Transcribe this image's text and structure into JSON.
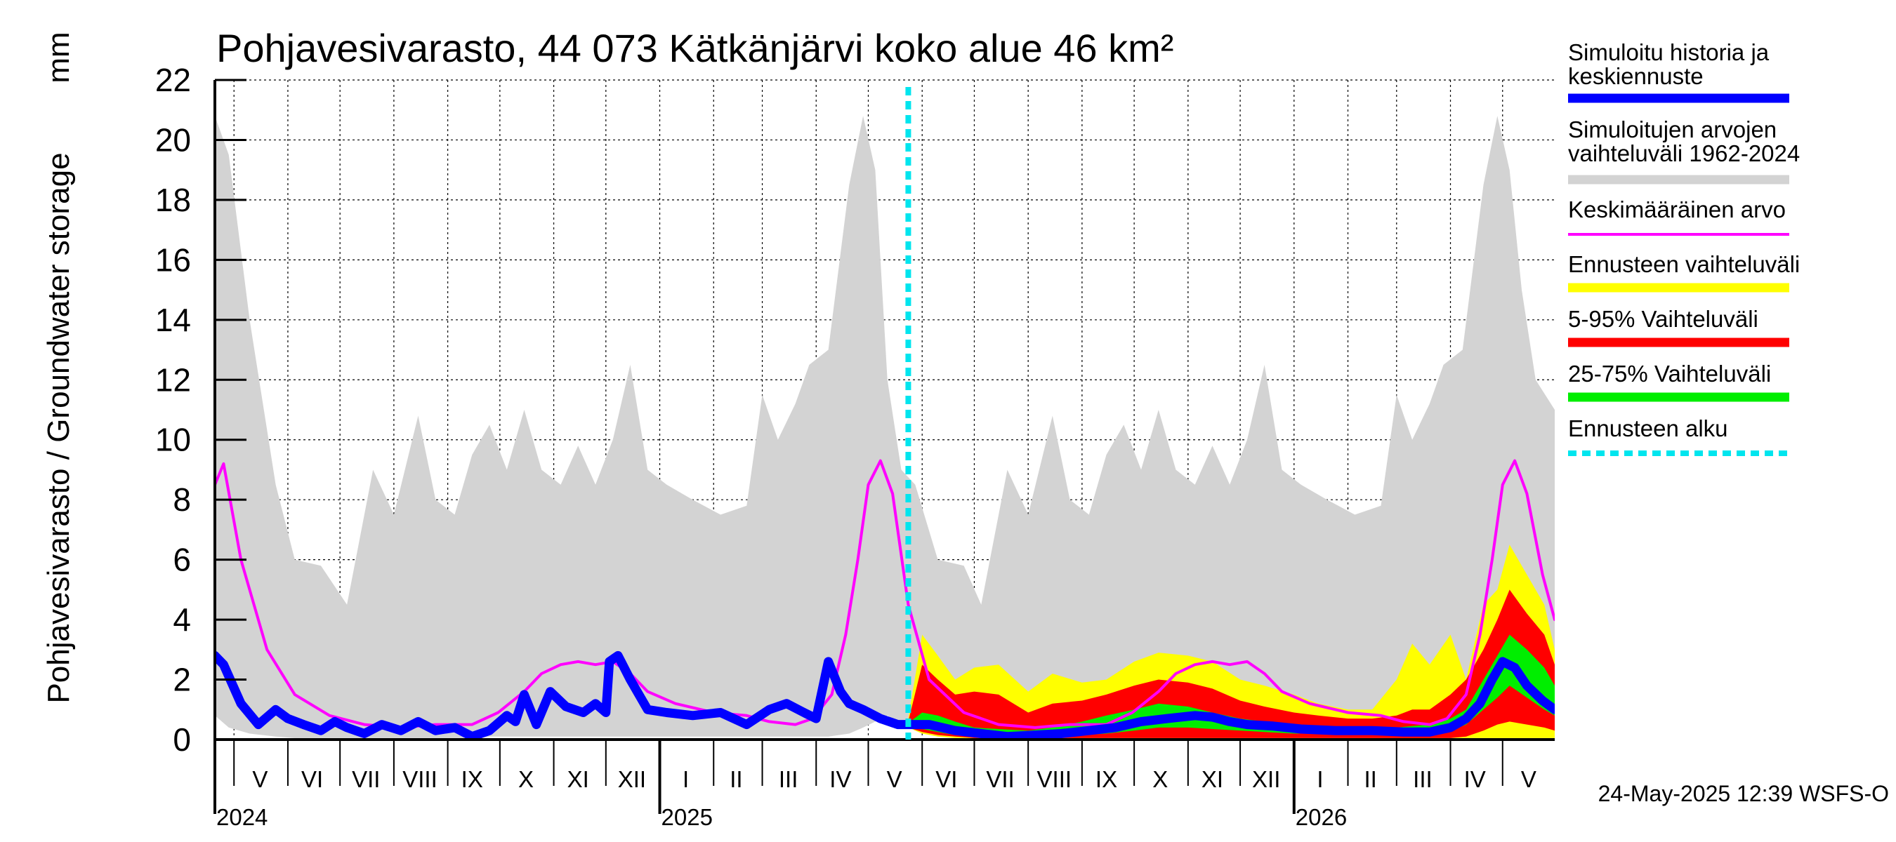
{
  "chart_data": {
    "type": "area",
    "title": "Pohjavesivarasto, 44 073 Kätkänjärvi koko alue 46 km²",
    "ylabel": "Pohjavesivarasto / Groundwater storage",
    "yunit": "mm",
    "ylim": [
      0,
      22
    ],
    "yticks": [
      0,
      2,
      4,
      6,
      8,
      10,
      12,
      14,
      16,
      18,
      20,
      22
    ],
    "xlim": [
      "2024-04-20",
      "2026-05-31"
    ],
    "forecast_start": "2025-05-24",
    "grid": true,
    "legend_placement": "right",
    "month_labels": [
      {
        "label": "V",
        "date": "2024-05-16"
      },
      {
        "label": "VI",
        "date": "2024-06-15"
      },
      {
        "label": "VII",
        "date": "2024-07-16"
      },
      {
        "label": "VIII",
        "date": "2024-08-16"
      },
      {
        "label": "IX",
        "date": "2024-09-15"
      },
      {
        "label": "X",
        "date": "2024-10-16"
      },
      {
        "label": "XI",
        "date": "2024-11-15"
      },
      {
        "label": "XII",
        "date": "2024-12-16"
      },
      {
        "label": "I",
        "date": "2025-01-16"
      },
      {
        "label": "II",
        "date": "2025-02-14"
      },
      {
        "label": "III",
        "date": "2025-03-16"
      },
      {
        "label": "IV",
        "date": "2025-04-15"
      },
      {
        "label": "V",
        "date": "2025-05-16"
      },
      {
        "label": "VI",
        "date": "2025-06-15"
      },
      {
        "label": "VII",
        "date": "2025-07-16"
      },
      {
        "label": "VIII",
        "date": "2025-08-16"
      },
      {
        "label": "IX",
        "date": "2025-09-15"
      },
      {
        "label": "X",
        "date": "2025-10-16"
      },
      {
        "label": "XI",
        "date": "2025-11-15"
      },
      {
        "label": "XII",
        "date": "2025-12-16"
      },
      {
        "label": "I",
        "date": "2026-01-16"
      },
      {
        "label": "II",
        "date": "2026-02-14"
      },
      {
        "label": "III",
        "date": "2026-03-16"
      },
      {
        "label": "IV",
        "date": "2026-04-15"
      },
      {
        "label": "V",
        "date": "2026-05-16"
      }
    ],
    "year_labels": [
      {
        "label": "2024",
        "date": "2024-04-20"
      },
      {
        "label": "2025",
        "date": "2025-01-01"
      },
      {
        "label": "2026",
        "date": "2026-01-01"
      }
    ],
    "series": [
      {
        "name": "Simuloitujen arvojen vaihteluväli 1962-2024",
        "kind": "band",
        "color": "#d3d3d3",
        "x": [
          "2024-04-20",
          "2024-04-28",
          "2024-05-10",
          "2024-05-25",
          "2024-06-05",
          "2024-06-20",
          "2024-07-05",
          "2024-07-20",
          "2024-08-01",
          "2024-08-15",
          "2024-08-25",
          "2024-09-05",
          "2024-09-15",
          "2024-09-25",
          "2024-10-05",
          "2024-10-15",
          "2024-10-25",
          "2024-11-05",
          "2024-11-15",
          "2024-11-25",
          "2024-12-05",
          "2024-12-15",
          "2024-12-25",
          "2025-01-05",
          "2025-01-20",
          "2025-02-05",
          "2025-02-20",
          "2025-03-01",
          "2025-03-10",
          "2025-03-20",
          "2025-03-28",
          "2025-04-08",
          "2025-04-20",
          "2025-04-28",
          "2025-05-05",
          "2025-05-12",
          "2025-05-20",
          "2025-05-28",
          "2025-06-10",
          "2025-06-25",
          "2025-07-05",
          "2025-07-20",
          "2025-08-01",
          "2025-08-15",
          "2025-08-25",
          "2025-09-05",
          "2025-09-15",
          "2025-09-25",
          "2025-10-05",
          "2025-10-15",
          "2025-10-25",
          "2025-11-05",
          "2025-11-15",
          "2025-11-25",
          "2025-12-05",
          "2025-12-15",
          "2025-12-25",
          "2026-01-05",
          "2026-01-20",
          "2026-02-05",
          "2026-02-20",
          "2026-03-01",
          "2026-03-10",
          "2026-03-20",
          "2026-03-28",
          "2026-04-08",
          "2026-04-20",
          "2026-04-28",
          "2026-05-05",
          "2026-05-12",
          "2026-05-20",
          "2026-05-31"
        ],
        "high": [
          20.8,
          19.5,
          14.0,
          8.5,
          6.0,
          5.8,
          4.5,
          9.0,
          7.5,
          10.8,
          8.0,
          7.5,
          9.5,
          10.5,
          9.0,
          11.0,
          9.0,
          8.5,
          9.8,
          8.5,
          10.0,
          12.5,
          9.0,
          8.5,
          8.0,
          7.5,
          7.8,
          11.5,
          10.0,
          11.2,
          12.5,
          13.0,
          18.5,
          20.8,
          19.0,
          12.0,
          9.0,
          8.5,
          6.0,
          5.8,
          4.5,
          9.0,
          7.5,
          10.8,
          8.0,
          7.5,
          9.5,
          10.5,
          9.0,
          11.0,
          9.0,
          8.5,
          9.8,
          8.5,
          10.0,
          12.5,
          9.0,
          8.5,
          8.0,
          7.5,
          7.8,
          11.5,
          10.0,
          11.2,
          12.5,
          13.0,
          18.5,
          20.8,
          19.0,
          15.0,
          12.0,
          11.0
        ],
        "low": [
          0.8,
          0.4,
          0.2,
          0.1,
          0.05,
          0.05,
          0.05,
          0.05,
          0.05,
          0.05,
          0.05,
          0.05,
          0.05,
          0.1,
          0.1,
          0.1,
          0.1,
          0.1,
          0.1,
          0.1,
          0.1,
          0.1,
          0.1,
          0.1,
          0.1,
          0.1,
          0.1,
          0.1,
          0.1,
          0.1,
          0.1,
          0.1,
          0.2,
          0.4,
          0.6,
          0.8,
          0.5,
          0.4,
          0.2,
          0.1,
          0.05,
          0.05,
          0.05,
          0.05,
          0.05,
          0.05,
          0.05,
          0.1,
          0.1,
          0.1,
          0.1,
          0.1,
          0.1,
          0.1,
          0.1,
          0.1,
          0.1,
          0.1,
          0.1,
          0.1,
          0.1,
          0.1,
          0.1,
          0.1,
          0.1,
          0.1,
          0.2,
          0.4,
          0.6,
          0.8,
          0.6,
          0.5
        ]
      },
      {
        "name": "Ennusteen vaihteluväli",
        "kind": "band",
        "color": "#ffff00",
        "x": [
          "2025-05-24",
          "2025-06-01",
          "2025-06-10",
          "2025-06-20",
          "2025-07-01",
          "2025-07-15",
          "2025-08-01",
          "2025-08-15",
          "2025-09-01",
          "2025-09-15",
          "2025-10-01",
          "2025-10-15",
          "2025-11-01",
          "2025-11-15",
          "2025-12-01",
          "2025-12-15",
          "2026-01-01",
          "2026-01-15",
          "2026-02-01",
          "2026-02-15",
          "2026-03-01",
          "2026-03-10",
          "2026-03-20",
          "2026-04-01",
          "2026-04-10",
          "2026-04-20",
          "2026-04-28",
          "2026-05-05",
          "2026-05-15",
          "2026-05-25",
          "2026-05-31"
        ],
        "high": [
          0.7,
          3.5,
          2.8,
          2.0,
          2.4,
          2.5,
          1.6,
          2.2,
          1.9,
          2.0,
          2.6,
          2.9,
          2.8,
          2.6,
          2.0,
          1.8,
          1.5,
          1.2,
          1.0,
          1.0,
          2.0,
          3.2,
          2.5,
          3.5,
          2.0,
          4.5,
          5.0,
          6.5,
          5.5,
          4.5,
          3.0
        ],
        "low": [
          0.4,
          0.2,
          0.1,
          0.05,
          0.05,
          0.05,
          0.05,
          0.05,
          0.05,
          0.05,
          0.05,
          0.05,
          0.05,
          0.05,
          0.05,
          0.05,
          0.05,
          0.05,
          0.05,
          0.05,
          0.05,
          0.05,
          0.05,
          0.05,
          0.05,
          0.05,
          0.05,
          0.05,
          0.05,
          0.05,
          0.05
        ]
      },
      {
        "name": "5-95% Vaihteluväli",
        "kind": "band",
        "color": "#ff0000",
        "x": [
          "2025-05-24",
          "2025-06-01",
          "2025-06-10",
          "2025-06-20",
          "2025-07-01",
          "2025-07-15",
          "2025-08-01",
          "2025-08-15",
          "2025-09-01",
          "2025-09-15",
          "2025-10-01",
          "2025-10-15",
          "2025-11-01",
          "2025-11-15",
          "2025-12-01",
          "2025-12-15",
          "2026-01-01",
          "2026-01-15",
          "2026-02-01",
          "2026-02-15",
          "2026-03-01",
          "2026-03-10",
          "2026-03-20",
          "2026-04-01",
          "2026-04-10",
          "2026-04-20",
          "2026-04-28",
          "2026-05-05",
          "2026-05-15",
          "2026-05-25",
          "2026-05-31"
        ],
        "high": [
          0.6,
          2.5,
          2.0,
          1.5,
          1.6,
          1.5,
          0.9,
          1.2,
          1.3,
          1.5,
          1.8,
          2.0,
          1.9,
          1.7,
          1.3,
          1.1,
          0.9,
          0.8,
          0.7,
          0.7,
          0.8,
          1.0,
          1.0,
          1.5,
          2.0,
          3.0,
          4.0,
          5.0,
          4.2,
          3.5,
          2.5
        ],
        "low": [
          0.4,
          0.25,
          0.15,
          0.1,
          0.05,
          0.05,
          0.05,
          0.05,
          0.05,
          0.05,
          0.05,
          0.05,
          0.05,
          0.05,
          0.05,
          0.05,
          0.05,
          0.05,
          0.05,
          0.05,
          0.05,
          0.05,
          0.05,
          0.05,
          0.1,
          0.3,
          0.5,
          0.6,
          0.5,
          0.4,
          0.3
        ]
      },
      {
        "name": "25-75% Vaihteluväli",
        "kind": "band",
        "color": "#00ee00",
        "x": [
          "2025-05-24",
          "2025-06-01",
          "2025-06-10",
          "2025-06-20",
          "2025-07-01",
          "2025-07-15",
          "2025-08-01",
          "2025-08-15",
          "2025-09-01",
          "2025-09-15",
          "2025-10-01",
          "2025-10-15",
          "2025-11-01",
          "2025-11-15",
          "2025-12-01",
          "2025-12-15",
          "2026-01-01",
          "2026-01-15",
          "2026-02-01",
          "2026-02-15",
          "2026-03-01",
          "2026-03-10",
          "2026-03-20",
          "2026-04-01",
          "2026-04-10",
          "2026-04-20",
          "2026-04-28",
          "2026-05-05",
          "2026-05-15",
          "2026-05-25",
          "2026-05-31"
        ],
        "high": [
          0.55,
          0.9,
          0.8,
          0.6,
          0.4,
          0.35,
          0.3,
          0.4,
          0.6,
          0.8,
          1.0,
          1.2,
          1.1,
          0.9,
          0.7,
          0.6,
          0.5,
          0.45,
          0.4,
          0.4,
          0.4,
          0.45,
          0.5,
          0.7,
          1.0,
          2.0,
          2.8,
          3.5,
          3.0,
          2.4,
          1.8
        ],
        "low": [
          0.45,
          0.35,
          0.25,
          0.15,
          0.1,
          0.08,
          0.08,
          0.1,
          0.15,
          0.2,
          0.3,
          0.4,
          0.4,
          0.35,
          0.3,
          0.25,
          0.2,
          0.2,
          0.2,
          0.2,
          0.2,
          0.2,
          0.2,
          0.3,
          0.5,
          1.0,
          1.4,
          1.8,
          1.4,
          1.0,
          0.8
        ]
      },
      {
        "name": "Keskimääräinen arvo",
        "kind": "line",
        "color": "#ff00ff",
        "x": [
          "2024-04-20",
          "2024-04-25",
          "2024-05-05",
          "2024-05-20",
          "2024-06-05",
          "2024-06-25",
          "2024-07-15",
          "2024-08-05",
          "2024-08-25",
          "2024-09-15",
          "2024-09-30",
          "2024-10-15",
          "2024-10-25",
          "2024-11-05",
          "2024-11-15",
          "2024-11-25",
          "2024-12-05",
          "2024-12-15",
          "2024-12-25",
          "2025-01-10",
          "2025-02-01",
          "2025-02-20",
          "2025-03-05",
          "2025-03-20",
          "2025-03-30",
          "2025-04-10",
          "2025-04-18",
          "2025-04-25",
          "2025-05-01",
          "2025-05-08",
          "2025-05-15",
          "2025-05-24",
          "2025-06-05",
          "2025-06-25",
          "2025-07-15",
          "2025-08-05",
          "2025-08-25",
          "2025-09-15",
          "2025-09-30",
          "2025-10-15",
          "2025-10-25",
          "2025-11-05",
          "2025-11-15",
          "2025-11-25",
          "2025-12-05",
          "2025-12-15",
          "2025-12-25",
          "2026-01-10",
          "2026-02-01",
          "2026-02-20",
          "2026-03-05",
          "2026-03-20",
          "2026-03-30",
          "2026-04-10",
          "2026-04-18",
          "2026-04-25",
          "2026-05-01",
          "2026-05-08",
          "2026-05-15",
          "2026-05-24",
          "2026-05-31"
        ],
        "values": [
          8.5,
          9.2,
          6.0,
          3.0,
          1.5,
          0.8,
          0.5,
          0.4,
          0.5,
          0.5,
          0.9,
          1.6,
          2.2,
          2.5,
          2.6,
          2.5,
          2.6,
          2.2,
          1.6,
          1.2,
          0.9,
          0.8,
          0.6,
          0.5,
          0.7,
          1.5,
          3.5,
          6.0,
          8.5,
          9.3,
          8.2,
          4.5,
          2.0,
          0.9,
          0.5,
          0.4,
          0.5,
          0.5,
          0.9,
          1.6,
          2.2,
          2.5,
          2.6,
          2.5,
          2.6,
          2.2,
          1.6,
          1.2,
          0.9,
          0.8,
          0.6,
          0.5,
          0.7,
          1.5,
          3.5,
          6.0,
          8.5,
          9.3,
          8.2,
          5.5,
          4.0
        ]
      },
      {
        "name": "Simuloitu historia ja keskiennuste",
        "kind": "line",
        "color": "#0000ff",
        "x": [
          "2024-04-20",
          "2024-04-25",
          "2024-05-05",
          "2024-05-15",
          "2024-05-25",
          "2024-06-01",
          "2024-06-10",
          "2024-06-20",
          "2024-06-28",
          "2024-07-05",
          "2024-07-15",
          "2024-07-25",
          "2024-08-05",
          "2024-08-15",
          "2024-08-25",
          "2024-09-05",
          "2024-09-15",
          "2024-09-25",
          "2024-10-05",
          "2024-10-10",
          "2024-10-15",
          "2024-10-22",
          "2024-10-30",
          "2024-11-08",
          "2024-11-18",
          "2024-11-25",
          "2024-12-01",
          "2024-12-03",
          "2024-12-08",
          "2024-12-15",
          "2024-12-25",
          "2025-01-05",
          "2025-01-20",
          "2025-02-05",
          "2025-02-20",
          "2025-03-05",
          "2025-03-15",
          "2025-03-25",
          "2025-04-01",
          "2025-04-08",
          "2025-04-15",
          "2025-04-20",
          "2025-04-28",
          "2025-05-08",
          "2025-05-18",
          "2025-05-24",
          "2025-06-05",
          "2025-06-20",
          "2025-07-05",
          "2025-07-20",
          "2025-08-05",
          "2025-08-20",
          "2025-09-05",
          "2025-09-20",
          "2025-10-05",
          "2025-10-20",
          "2025-11-05",
          "2025-11-15",
          "2025-11-25",
          "2025-12-05",
          "2025-12-20",
          "2026-01-05",
          "2026-01-25",
          "2026-02-15",
          "2026-03-05",
          "2026-03-20",
          "2026-04-01",
          "2026-04-10",
          "2026-04-18",
          "2026-04-25",
          "2026-05-01",
          "2026-05-08",
          "2026-05-15",
          "2026-05-24",
          "2026-05-31"
        ],
        "values": [
          2.8,
          2.5,
          1.2,
          0.5,
          1.0,
          0.7,
          0.5,
          0.3,
          0.6,
          0.4,
          0.2,
          0.5,
          0.3,
          0.6,
          0.3,
          0.4,
          0.1,
          0.3,
          0.8,
          0.6,
          1.5,
          0.5,
          1.6,
          1.1,
          0.9,
          1.2,
          0.9,
          2.6,
          2.8,
          2.0,
          1.0,
          0.9,
          0.8,
          0.9,
          0.5,
          1.0,
          1.2,
          0.9,
          0.7,
          2.6,
          1.6,
          1.2,
          1.0,
          0.7,
          0.5,
          0.5,
          0.5,
          0.3,
          0.2,
          0.1,
          0.15,
          0.2,
          0.3,
          0.4,
          0.6,
          0.7,
          0.8,
          0.75,
          0.6,
          0.5,
          0.45,
          0.35,
          0.3,
          0.3,
          0.25,
          0.25,
          0.4,
          0.7,
          1.2,
          2.0,
          2.6,
          2.4,
          1.8,
          1.3,
          1.0
        ]
      }
    ],
    "legend": [
      {
        "label": "Simuloitu historia ja keskiennuste",
        "color": "#0000ff",
        "style": "thick"
      },
      {
        "label": "Simuloitujen arvojen vaihteluväli 1962-2024",
        "color": "#d3d3d3",
        "style": "thick"
      },
      {
        "label": "Keskimääräinen arvo",
        "color": "#ff00ff",
        "style": "thin"
      },
      {
        "label": "Ennusteen vaihteluväli",
        "color": "#ffff00",
        "style": "thick"
      },
      {
        "label": "5-95% Vaihteluväli",
        "color": "#ff0000",
        "style": "thick"
      },
      {
        "label": "25-75% Vaihteluväli",
        "color": "#00ee00",
        "style": "thick"
      },
      {
        "label": "Ennusteen alku",
        "color": "#00e5ee",
        "style": "dashed"
      }
    ],
    "footer": "24-May-2025 12:39 WSFS-O"
  }
}
